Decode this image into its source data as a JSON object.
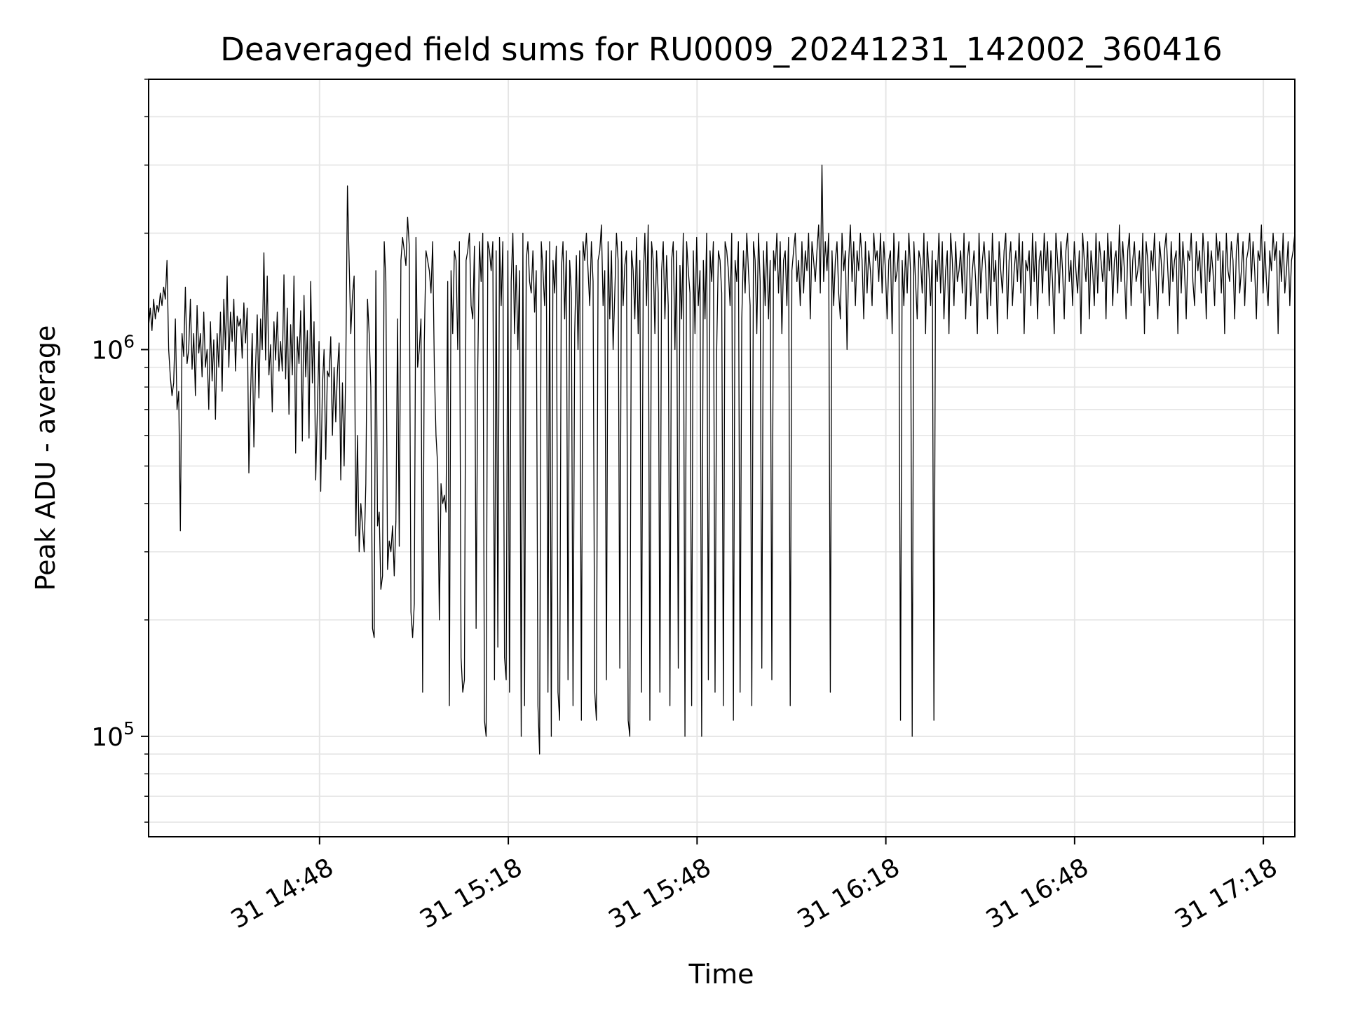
{
  "chart_data": {
    "type": "line",
    "title": "Deaveraged field sums for RU0009_20241231_142002_360416",
    "xlabel": "Time",
    "ylabel": "Peak ADU - average",
    "yscale": "log",
    "x_axis_type": "time",
    "xlim": [
      "2024-12-31T14:20:50",
      "2024-12-31T17:23:00"
    ],
    "ylim": [
      55000,
      5000000
    ],
    "grid": true,
    "line_color": "#000000",
    "grid_color": "#e5e5e5",
    "x_ticks": [
      {
        "value": "2024-12-31T14:48:00",
        "label": "31 14:48"
      },
      {
        "value": "2024-12-31T15:18:00",
        "label": "31 15:18"
      },
      {
        "value": "2024-12-31T15:48:00",
        "label": "31 15:48"
      },
      {
        "value": "2024-12-31T16:18:00",
        "label": "31 16:18"
      },
      {
        "value": "2024-12-31T16:48:00",
        "label": "31 16:48"
      },
      {
        "value": "2024-12-31T17:18:00",
        "label": "31 17:18"
      }
    ],
    "y_ticks": [
      {
        "value": 100000,
        "base": "10",
        "exponent": "5"
      },
      {
        "value": 1000000,
        "base": "10",
        "exponent": "6"
      }
    ],
    "series": [
      {
        "start": "2024-12-31T14:20:50",
        "end": "2024-12-31T17:23:00",
        "values": [
          1150000,
          1280000,
          1120000,
          1350000,
          1200000,
          1300000,
          1250000,
          1400000,
          1300000,
          1450000,
          1350000,
          1700000,
          1000000,
          850000,
          760000,
          820000,
          1200000,
          700000,
          780000,
          340000,
          1100000,
          960000,
          1450000,
          920000,
          1000000,
          1350000,
          890000,
          1100000,
          760000,
          1300000,
          980000,
          1100000,
          850000,
          1250000,
          900000,
          1000000,
          700000,
          1180000,
          830000,
          1060000,
          660000,
          1100000,
          900000,
          1250000,
          780000,
          1350000,
          1000000,
          1550000,
          900000,
          1250000,
          1050000,
          1350000,
          880000,
          1220000,
          1150000,
          1200000,
          950000,
          1320000,
          1040000,
          1280000,
          480000,
          760000,
          1100000,
          560000,
          900000,
          1230000,
          750000,
          1200000,
          1000000,
          1780000,
          940000,
          1550000,
          860000,
          1030000,
          690000,
          1180000,
          940000,
          1250000,
          880000,
          1050000,
          880000,
          1560000,
          840000,
          1280000,
          680000,
          1160000,
          860000,
          1550000,
          540000,
          1080000,
          920000,
          1260000,
          580000,
          1380000,
          850000,
          1120000,
          590000,
          1500000,
          820000,
          1180000,
          460000,
          700000,
          1050000,
          430000,
          800000,
          1000000,
          520000,
          880000,
          850000,
          1080000,
          600000,
          900000,
          650000,
          880000,
          1040000,
          460000,
          820000,
          500000,
          900000,
          2650000,
          1700000,
          1100000,
          1380000,
          1550000,
          330000,
          600000,
          300000,
          400000,
          350000,
          300000,
          450000,
          1350000,
          1100000,
          800000,
          190000,
          180000,
          1600000,
          350000,
          380000,
          240000,
          260000,
          1900000,
          1500000,
          270000,
          320000,
          300000,
          350000,
          260000,
          360000,
          1200000,
          310000,
          1700000,
          1950000,
          1800000,
          1650000,
          2200000,
          1850000,
          210000,
          180000,
          220000,
          1950000,
          900000,
          1000000,
          1200000,
          130000,
          1050000,
          1800000,
          1700000,
          1600000,
          1400000,
          1900000,
          900000,
          600000,
          500000,
          200000,
          450000,
          400000,
          420000,
          380000,
          1500000,
          120000,
          1600000,
          1100000,
          1800000,
          1700000,
          1000000,
          1900000,
          160000,
          130000,
          140000,
          1700000,
          1800000,
          2000000,
          1300000,
          1200000,
          1850000,
          190000,
          900000,
          1900000,
          1500000,
          2000000,
          110000,
          100000,
          1900000,
          1800000,
          1600000,
          1900000,
          140000,
          1800000,
          170000,
          1950000,
          1300000,
          1900000,
          160000,
          140000,
          1800000,
          130000,
          1500000,
          2000000,
          1100000,
          1650000,
          1000000,
          1600000,
          100000,
          2000000,
          120000,
          1700000,
          1900000,
          1500000,
          1400000,
          1800000,
          1250000,
          1600000,
          120000,
          90000,
          1900000,
          1600000,
          1300000,
          1800000,
          130000,
          1900000,
          100000,
          1700000,
          1400000,
          1850000,
          130000,
          110000,
          1600000,
          1900000,
          1200000,
          1800000,
          140000,
          1700000,
          1400000,
          120000,
          1100000,
          1750000,
          1000000,
          1800000,
          110000,
          1900000,
          1700000,
          2000000,
          1600000,
          1300000,
          1900000,
          1500000,
          130000,
          110000,
          1700000,
          1800000,
          2100000,
          1300000,
          1600000,
          140000,
          1900000,
          1200000,
          1800000,
          1000000,
          1400000,
          2000000,
          1700000,
          150000,
          1900000,
          1300000,
          1650000,
          1800000,
          110000,
          100000,
          1800000,
          1600000,
          1200000,
          1950000,
          1100000,
          1700000,
          130000,
          1500000,
          2000000,
          1300000,
          2100000,
          110000,
          1900000,
          1700000,
          1100000,
          1800000,
          1400000,
          130000,
          1600000,
          1900000,
          1200000,
          1750000,
          1300000,
          120000,
          1700000,
          1900000,
          1000000,
          1800000,
          150000,
          1650000,
          1200000,
          2000000,
          100000,
          1900000,
          1600000,
          1400000,
          120000,
          1800000,
          1100000,
          1950000,
          1300000,
          1600000,
          100000,
          1700000,
          1200000,
          2000000,
          140000,
          1800000,
          1500000,
          1900000,
          130000,
          1000000,
          1800000,
          1700000,
          1400000,
          120000,
          1900000,
          1800000,
          1600000,
          1300000,
          2000000,
          110000,
          1700000,
          1500000,
          1900000,
          130000,
          1200000,
          1800000,
          1400000,
          2000000,
          1600000,
          1300000,
          120000,
          1900000,
          1700000,
          1100000,
          2000000,
          1500000,
          150000,
          1800000,
          1300000,
          1900000,
          1200000,
          1700000,
          140000,
          1800000,
          1600000,
          2000000,
          1400000,
          1900000,
          1100000,
          1700000,
          1800000,
          1300000,
          1950000,
          120000,
          1600000,
          1800000,
          2000000,
          1500000,
          1700000,
          1300000,
          1900000,
          1400000,
          1800000,
          1600000,
          2000000,
          1200000,
          1900000,
          1700000,
          1500000,
          1800000,
          2100000,
          1400000,
          3000000,
          1500000,
          1900000,
          1600000,
          2000000,
          130000,
          1800000,
          1300000,
          1700000,
          1900000,
          1400000,
          1200000,
          2000000,
          1600000,
          1800000,
          1000000,
          1700000,
          2100000,
          1500000,
          1900000,
          1300000,
          1800000,
          1600000,
          2000000,
          1700000,
          1200000,
          1900000,
          1400000,
          1800000,
          1600000,
          1300000,
          2000000,
          1700000,
          1800000,
          1500000,
          2000000,
          1400000,
          1900000,
          1600000,
          1200000,
          1700000,
          1800000,
          1100000,
          2000000,
          1500000,
          1600000,
          1900000,
          110000,
          1700000,
          1300000,
          1800000,
          1400000,
          2000000,
          1600000,
          100000,
          1900000,
          1500000,
          1200000,
          1800000,
          1700000,
          1400000,
          2000000,
          1100000,
          1900000,
          1600000,
          1300000,
          1800000,
          110000,
          1700000,
          1500000,
          2000000,
          1400000,
          1900000,
          1200000,
          1600000,
          1800000,
          1100000,
          2000000,
          1700000,
          1300000,
          1900000,
          1500000,
          1600000,
          1800000,
          1400000,
          2000000,
          1200000,
          1700000,
          1900000,
          1300000,
          1600000,
          1800000,
          1500000,
          1100000,
          2000000,
          1400000,
          1700000,
          1900000,
          1600000,
          1200000,
          1800000,
          1300000,
          2000000,
          1500000,
          1700000,
          1100000,
          1900000,
          1600000,
          1400000,
          1800000,
          2000000,
          1200000,
          1700000,
          1900000,
          1300000,
          1600000,
          1800000,
          1500000,
          2000000,
          1400000,
          1900000,
          1100000,
          1700000,
          1600000,
          1800000,
          1300000,
          2000000,
          1500000,
          1900000,
          1200000,
          1700000,
          1800000,
          1400000,
          2000000,
          1600000,
          1900000,
          1300000,
          1800000,
          1500000,
          1100000,
          2000000,
          1700000,
          1400000,
          1900000,
          1600000,
          1200000,
          1800000,
          2000000,
          1500000,
          1700000,
          1300000,
          1900000,
          1600000,
          1400000,
          1800000,
          1100000,
          2000000,
          1700000,
          1500000,
          1900000,
          1200000,
          1800000,
          1600000,
          1300000,
          2000000,
          1400000,
          1900000,
          1700000,
          1500000,
          1800000,
          1200000,
          2000000,
          1600000,
          1900000,
          1300000,
          1700000,
          1800000,
          1400000,
          2100000,
          1500000,
          1900000,
          1600000,
          1200000,
          1800000,
          2000000,
          1300000,
          1700000,
          1900000,
          1500000,
          1600000,
          1800000,
          1400000,
          2000000,
          1100000,
          1900000,
          1700000,
          1300000,
          1800000,
          1600000,
          2000000,
          1500000,
          1200000,
          1900000,
          1700000,
          1400000,
          1800000,
          2000000,
          1600000,
          1300000,
          1900000,
          1500000,
          1700000,
          1800000,
          1100000,
          2000000,
          1400000,
          1900000,
          1600000,
          1200000,
          1800000,
          1700000,
          2000000,
          1500000,
          1300000,
          1900000,
          1600000,
          1800000,
          1400000,
          2000000,
          1700000,
          1200000,
          1900000,
          1500000,
          1800000,
          1600000,
          1300000,
          2000000,
          1700000,
          1900000,
          1400000,
          1800000,
          1100000,
          2000000,
          1600000,
          1500000,
          1900000,
          1700000,
          1200000,
          1800000,
          2000000,
          1400000,
          1600000,
          1900000,
          1300000,
          1700000,
          1800000,
          2000000,
          1500000,
          1900000,
          1600000,
          1200000,
          1800000,
          1700000,
          2100000,
          1400000,
          1900000,
          1500000,
          1300000,
          1800000,
          1600000,
          2000000,
          1700000,
          1900000,
          1100000,
          1800000,
          1500000,
          2000000,
          1400000,
          1600000,
          1900000,
          1300000,
          1700000,
          1800000,
          2000000
        ]
      }
    ]
  }
}
